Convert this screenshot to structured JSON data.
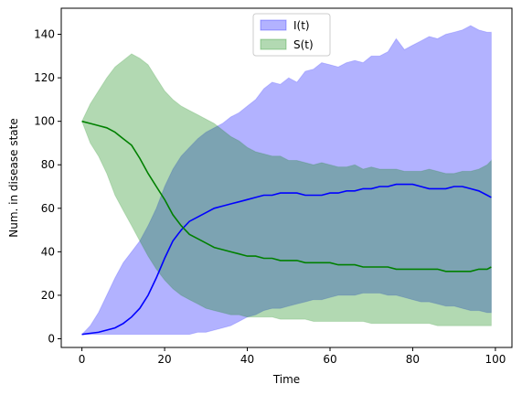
{
  "chart_data": {
    "type": "area",
    "xlabel": "Time",
    "ylabel": "Num. in disease state",
    "xlim": [
      -5,
      104
    ],
    "ylim": [
      -4,
      152
    ],
    "xticks": [
      0,
      20,
      40,
      60,
      80,
      100
    ],
    "yticks": [
      0,
      20,
      40,
      60,
      80,
      100,
      120,
      140
    ],
    "x": [
      0,
      2,
      4,
      6,
      8,
      10,
      12,
      14,
      16,
      18,
      20,
      22,
      24,
      26,
      28,
      30,
      32,
      34,
      36,
      38,
      40,
      42,
      44,
      46,
      48,
      50,
      52,
      54,
      56,
      58,
      60,
      62,
      64,
      66,
      68,
      70,
      72,
      74,
      76,
      78,
      80,
      82,
      84,
      86,
      88,
      90,
      92,
      94,
      96,
      98,
      99
    ],
    "series": [
      {
        "name": "I(t)",
        "color": "#0000ff",
        "band_color": "#b0b0ff",
        "mean": [
          2,
          2.5,
          3,
          4,
          5,
          7,
          10,
          14,
          20,
          28,
          37,
          45,
          50,
          54,
          56,
          58,
          60,
          61,
          62,
          63,
          64,
          65,
          66,
          66,
          67,
          67,
          67,
          66,
          66,
          66,
          67,
          67,
          68,
          68,
          69,
          69,
          70,
          70,
          71,
          71,
          71,
          70,
          69,
          69,
          69,
          70,
          70,
          69,
          68,
          66,
          65
        ],
        "upper": [
          2,
          6,
          12,
          20,
          28,
          35,
          40,
          45,
          52,
          60,
          70,
          78,
          84,
          88,
          92,
          95,
          97,
          99,
          102,
          104,
          107,
          110,
          115,
          118,
          117,
          120,
          118,
          123,
          124,
          127,
          126,
          125,
          127,
          128,
          127,
          130,
          130,
          132,
          138,
          133,
          135,
          137,
          139,
          138,
          140,
          141,
          142,
          144,
          142,
          141,
          141
        ],
        "lower": [
          2,
          2,
          2,
          2,
          2,
          2,
          2,
          2,
          2,
          2,
          2,
          2,
          2,
          2,
          3,
          3,
          4,
          5,
          6,
          8,
          10,
          11,
          13,
          14,
          14,
          15,
          16,
          17,
          18,
          18,
          19,
          20,
          20,
          20,
          21,
          21,
          21,
          20,
          20,
          19,
          18,
          17,
          17,
          16,
          15,
          15,
          14,
          13,
          13,
          12,
          12
        ]
      },
      {
        "name": "S(t)",
        "color": "#008000",
        "band_color": "#b3d9b3",
        "mean": [
          100,
          99,
          98,
          97,
          95,
          92,
          89,
          83,
          76,
          70,
          64,
          57,
          52,
          48,
          46,
          44,
          42,
          41,
          40,
          39,
          38,
          38,
          37,
          37,
          36,
          36,
          36,
          35,
          35,
          35,
          35,
          34,
          34,
          34,
          33,
          33,
          33,
          33,
          32,
          32,
          32,
          32,
          32,
          32,
          31,
          31,
          31,
          31,
          32,
          32,
          33
        ],
        "upper": [
          100,
          108,
          114,
          120,
          125,
          128,
          131,
          129,
          126,
          120,
          114,
          110,
          107,
          105,
          103,
          101,
          99,
          96,
          93,
          91,
          88,
          86,
          85,
          84,
          84,
          82,
          82,
          81,
          80,
          81,
          80,
          79,
          79,
          80,
          78,
          79,
          78,
          78,
          78,
          77,
          77,
          77,
          78,
          77,
          76,
          76,
          77,
          77,
          78,
          80,
          82
        ],
        "lower": [
          100,
          90,
          84,
          76,
          66,
          59,
          52,
          45,
          38,
          32,
          27,
          23,
          20,
          18,
          16,
          14,
          13,
          12,
          11,
          11,
          10,
          10,
          10,
          10,
          9,
          9,
          9,
          9,
          8,
          8,
          8,
          8,
          8,
          8,
          8,
          7,
          7,
          7,
          7,
          7,
          7,
          7,
          7,
          6,
          6,
          6,
          6,
          6,
          6,
          6,
          6
        ]
      }
    ],
    "legend": {
      "position": "top-center"
    }
  }
}
